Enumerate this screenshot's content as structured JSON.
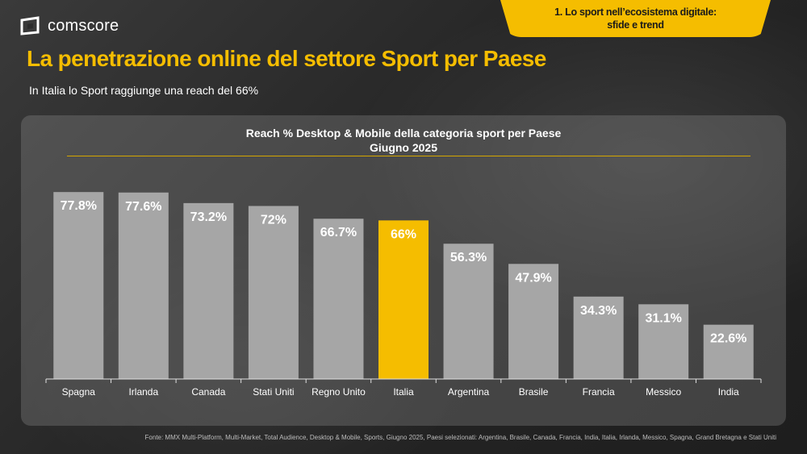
{
  "brand": {
    "name": "comscore"
  },
  "section_tab": {
    "line1": "1. Lo sport nell’ecosistema digitale:",
    "line2": "sfide e trend"
  },
  "page": {
    "title": "La penetrazione online del settore Sport per Paese",
    "subtitle": "In Italia lo Sport raggiunge una reach del 66%"
  },
  "chart_data": {
    "type": "bar",
    "title": "Reach % Desktop & Mobile della categoria sport per Paese",
    "subtitle": "Giugno 2025",
    "categories": [
      "Spagna",
      "Irlanda",
      "Canada",
      "Stati Uniti",
      "Regno Unito",
      "Italia",
      "Argentina",
      "Brasile",
      "Francia",
      "Messico",
      "India"
    ],
    "values": [
      77.8,
      77.6,
      73.2,
      72,
      66.7,
      66,
      56.3,
      47.9,
      34.3,
      31.1,
      22.6
    ],
    "labels": [
      "77.8%",
      "77.6%",
      "73.2%",
      "72%",
      "66.7%",
      "66%",
      "56.3%",
      "47.9%",
      "34.3%",
      "31.1%",
      "22.6%"
    ],
    "highlight": "Italia",
    "ylim": [
      0,
      100
    ],
    "grid": false,
    "legend": "none",
    "colors": {
      "bar": "#a6a6a6",
      "highlight": "#f5bd00",
      "label": "#ffffff",
      "axis": "#e0e0e0"
    }
  },
  "footnote": "Fonte: MMX Multi-Platform, Multi-Market, Total Audience, Desktop & Mobile, Sports, Giugno 2025, Paesi selezionati: Argentina, Brasile, Canada, Francia, India, Italia, Irlanda, Messico, Spagna, Grand Bretagna e Stati Uniti"
}
